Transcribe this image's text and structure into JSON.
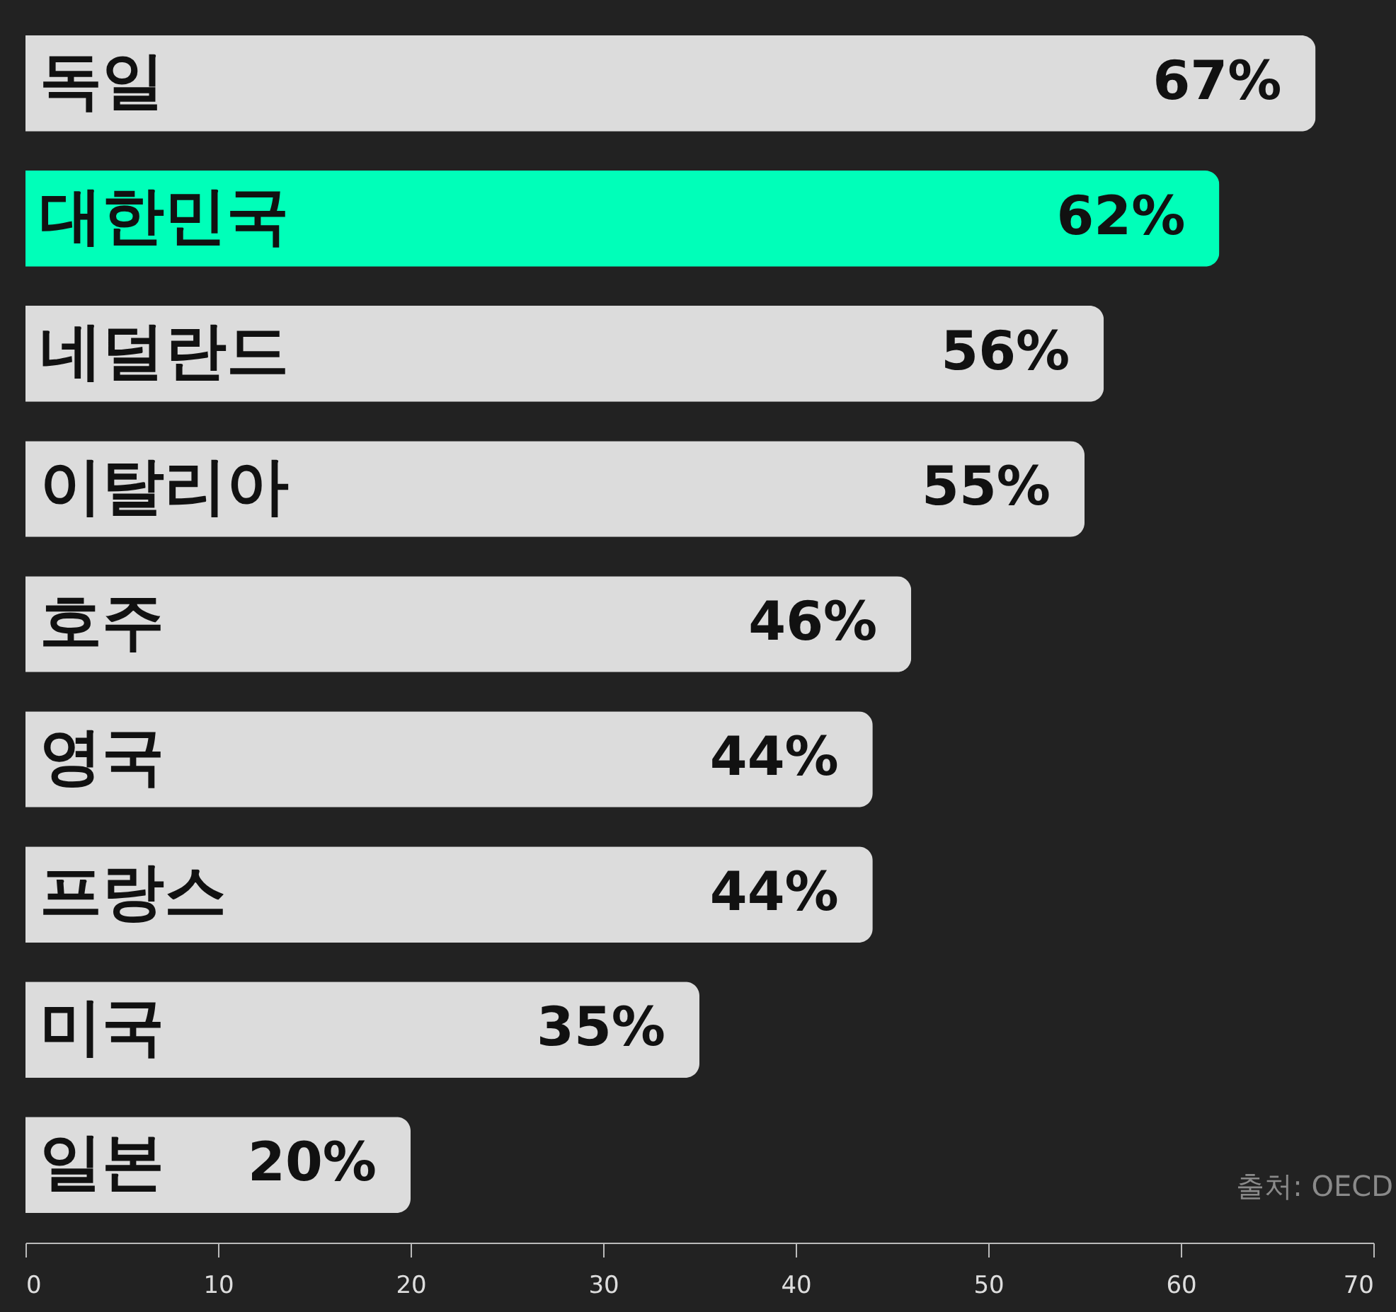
{
  "chart_data": {
    "type": "bar",
    "orientation": "horizontal",
    "categories": [
      "독일",
      "대한민국",
      "네덜란드",
      "이탈리아",
      "호주",
      "영국",
      "프랑스",
      "미국",
      "일본"
    ],
    "values": [
      67,
      62,
      56,
      55,
      46,
      44,
      44,
      35,
      20
    ],
    "colors": [
      "#dcdcdc",
      "#00ffb9",
      "#dcdcdc",
      "#dcdcdc",
      "#dcdcdc",
      "#dcdcdc",
      "#dcdcdc",
      "#dcdcdc",
      "#dcdcdc"
    ],
    "value_labels": [
      "67%",
      "62%",
      "56%",
      "55%",
      "46%",
      "44%",
      "44%",
      "35%",
      "20%"
    ],
    "xlim": [
      0,
      70
    ],
    "xticks": [
      0,
      10,
      20,
      30,
      40,
      50,
      60,
      70
    ],
    "grid": false,
    "annotations": [
      "출처: OECD"
    ]
  }
}
